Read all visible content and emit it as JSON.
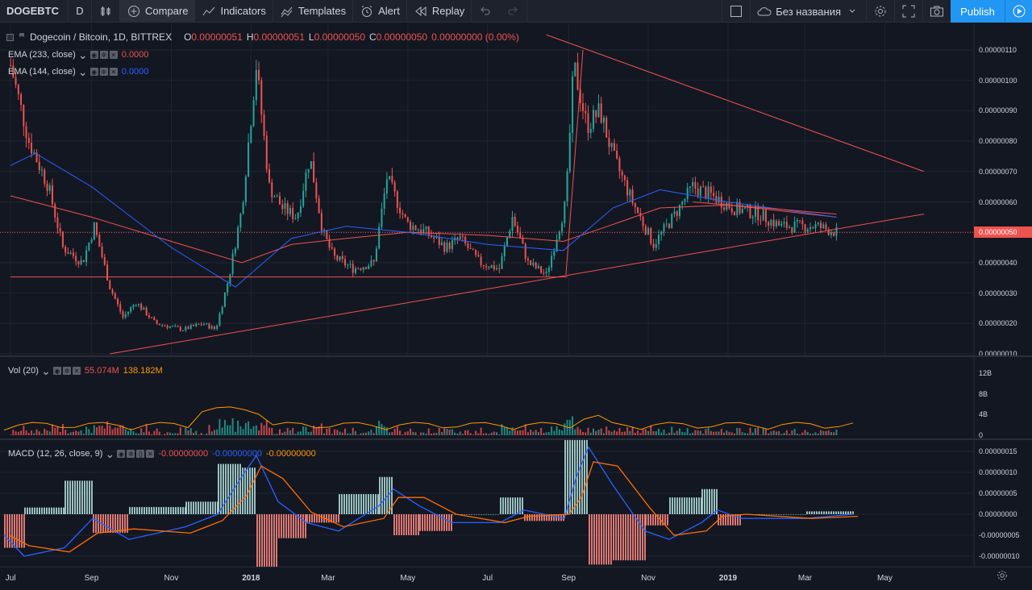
{
  "toolbar": {
    "symbol": "DOGEBTC",
    "interval": "D",
    "compare": "Compare",
    "indicators": "Indicators",
    "templates": "Templates",
    "alert": "Alert",
    "replay": "Replay",
    "layout_name": "Без названия",
    "publish": "Publish"
  },
  "main_legend": {
    "title": "Dogecoin / Bitcoin, 1D, BITTREX",
    "o_label": "O",
    "o_value": "0.00000051",
    "h_label": "H",
    "h_value": "0.00000051",
    "l_label": "L",
    "l_value": "0.00000050",
    "c_label": "C",
    "c_value": "0.00000050",
    "change": "0.00000000 (0.00%)"
  },
  "indicators": [
    {
      "name": "EMA (233, close)",
      "value": "0.0000",
      "color": "#ef5350"
    },
    {
      "name": "EMA (144, close)",
      "value": "0.0000",
      "color": "#2962ff"
    }
  ],
  "volume": {
    "name": "Vol (20)",
    "value1": "55.074M",
    "value2": "138.182M"
  },
  "macd": {
    "name": "MACD (12, 26, close, 9)",
    "hist": "-0.00000000",
    "macd": "-0.00000000",
    "signal": "-0.00000000"
  },
  "price_axis": [
    "0.00000110",
    "0.00000100",
    "0.00000090",
    "0.00000080",
    "0.00000070",
    "0.00000060",
    "0.00000040",
    "0.00000030",
    "0.00000020",
    "0.00000010"
  ],
  "current_price": "0.00000050",
  "volume_axis": [
    "12B",
    "8B",
    "4B",
    "0"
  ],
  "macd_axis": [
    "0.00000015",
    "0.00000010",
    "0.00000005",
    "0.00000000",
    "-0.00000005",
    "-0.00000010"
  ],
  "time_axis": [
    "Jul",
    "Sep",
    "Nov",
    "2018",
    "Mar",
    "May",
    "Jul",
    "Sep",
    "Nov",
    "2019",
    "Mar",
    "May"
  ],
  "colors": {
    "up": "#26a69a",
    "down": "#ef5350",
    "ema233": "#ef5350",
    "ema144": "#2962ff",
    "trend": "#ef5350",
    "background": "#131722"
  },
  "chart_data": {
    "type": "candlestick",
    "symbol": "DOGEBTC",
    "timeframe": "1D",
    "ylim": [
      1e-07,
      1.15e-06
    ],
    "series": [
      {
        "name": "close",
        "values": [
          [
            "2017-07-01",
            1.05e-06
          ],
          [
            "2017-07-15",
            8e-07
          ],
          [
            "2017-07-30",
            6.5e-07
          ],
          [
            "2017-08-10",
            4.5e-07
          ],
          [
            "2017-08-25",
            4e-07
          ],
          [
            "2017-09-03",
            5.2e-07
          ],
          [
            "2017-09-15",
            3.2e-07
          ],
          [
            "2017-09-25",
            2.2e-07
          ],
          [
            "2017-10-05",
            2.7e-07
          ],
          [
            "2017-10-20",
            2e-07
          ],
          [
            "2017-11-10",
            1.8e-07
          ],
          [
            "2017-11-25",
            2e-07
          ],
          [
            "2017-12-05",
            1.8e-07
          ],
          [
            "2017-12-15",
            3.5e-07
          ],
          [
            "2017-12-25",
            5.8e-07
          ],
          [
            "2018-01-05",
            1.05e-06
          ],
          [
            "2018-01-15",
            6.5e-07
          ],
          [
            "2018-01-25",
            5.8e-07
          ],
          [
            "2018-02-05",
            5.5e-07
          ],
          [
            "2018-02-15",
            7.5e-07
          ],
          [
            "2018-02-25",
            5e-07
          ],
          [
            "2018-03-05",
            4.2e-07
          ],
          [
            "2018-03-20",
            3.8e-07
          ],
          [
            "2018-04-05",
            4e-07
          ],
          [
            "2018-04-15",
            6.8e-07
          ],
          [
            "2018-04-30",
            5.3e-07
          ],
          [
            "2018-05-15",
            5e-07
          ],
          [
            "2018-05-30",
            4.5e-07
          ],
          [
            "2018-06-10",
            4.8e-07
          ],
          [
            "2018-06-25",
            4e-07
          ],
          [
            "2018-07-10",
            3.8e-07
          ],
          [
            "2018-07-20",
            5.5e-07
          ],
          [
            "2018-08-01",
            4e-07
          ],
          [
            "2018-08-15",
            3.6e-07
          ],
          [
            "2018-08-30",
            6e-07
          ],
          [
            "2018-09-05",
            1.05e-06
          ],
          [
            "2018-09-15",
            8.5e-07
          ],
          [
            "2018-09-25",
            9e-07
          ],
          [
            "2018-10-05",
            7.5e-07
          ],
          [
            "2018-10-20",
            6e-07
          ],
          [
            "2018-11-05",
            4.6e-07
          ],
          [
            "2018-11-20",
            5.5e-07
          ],
          [
            "2018-12-05",
            6.5e-07
          ],
          [
            "2018-12-20",
            6.2e-07
          ],
          [
            "2019-01-05",
            5.8e-07
          ],
          [
            "2019-01-25",
            5.6e-07
          ],
          [
            "2019-02-10",
            5.2e-07
          ],
          [
            "2019-02-25",
            5.2e-07
          ],
          [
            "2019-03-10",
            5.2e-07
          ],
          [
            "2019-03-25",
            5e-07
          ]
        ]
      },
      {
        "name": "EMA (233, close)",
        "values": [
          [
            "2017-07-01",
            6.2e-07
          ],
          [
            "2017-09-01",
            5.5e-07
          ],
          [
            "2017-11-01",
            4.7e-07
          ],
          [
            "2017-12-25",
            4e-07
          ],
          [
            "2018-02-01",
            4.6e-07
          ],
          [
            "2018-03-15",
            4.8e-07
          ],
          [
            "2018-05-01",
            5e-07
          ],
          [
            "2018-07-01",
            4.9e-07
          ],
          [
            "2018-08-28",
            4.7e-07
          ],
          [
            "2018-10-01",
            5.2e-07
          ],
          [
            "2018-11-10",
            5.8e-07
          ],
          [
            "2019-01-01",
            5.9e-07
          ],
          [
            "2019-03-25",
            5.5e-07
          ]
        ]
      },
      {
        "name": "EMA (144, close)",
        "values": [
          [
            "2017-07-01",
            7.2e-07
          ],
          [
            "2017-07-20",
            7.6e-07
          ],
          [
            "2017-09-01",
            6.5e-07
          ],
          [
            "2017-11-01",
            4.5e-07
          ],
          [
            "2017-12-20",
            3.2e-07
          ],
          [
            "2018-02-01",
            4.8e-07
          ],
          [
            "2018-03-15",
            5.2e-07
          ],
          [
            "2018-05-01",
            5e-07
          ],
          [
            "2018-07-01",
            4.6e-07
          ],
          [
            "2018-08-28",
            4.4e-07
          ],
          [
            "2018-10-05",
            5.8e-07
          ],
          [
            "2018-11-10",
            6.4e-07
          ],
          [
            "2019-01-01",
            6e-07
          ],
          [
            "2019-03-25",
            5.5e-07
          ]
        ]
      }
    ]
  }
}
